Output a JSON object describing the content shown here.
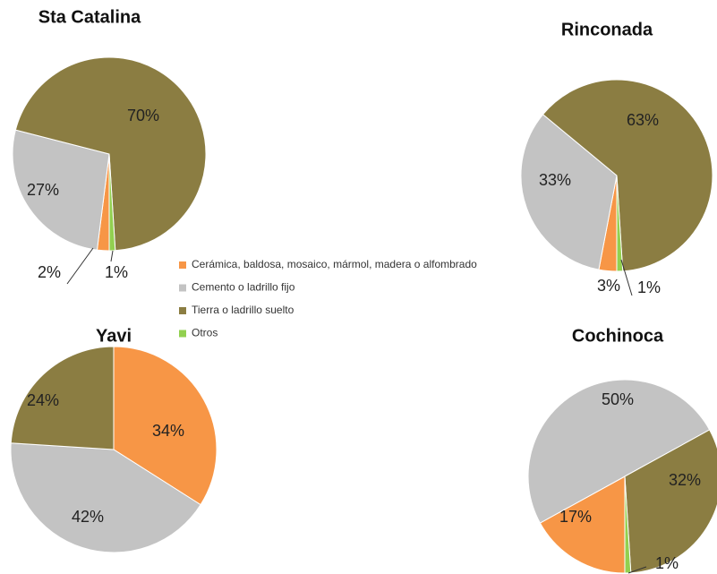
{
  "chart_data": [
    {
      "type": "pie",
      "title": "Sta Catalina",
      "start_angle": 180,
      "categories": [
        "Cerámica, baldosa, mosaico, mármol, madera o alfombrado",
        "Cemento o ladrillo fijo",
        "Tierra o ladrillo suelto",
        "Otros"
      ],
      "values": [
        2,
        27,
        70,
        1
      ],
      "value_labels": [
        "2%",
        "27%",
        "70%",
        "1%"
      ],
      "colors": [
        "#f79646",
        "#c3c3c3",
        "#8b7d42",
        "#92d050"
      ]
    },
    {
      "type": "pie",
      "title": "Rinconada",
      "start_angle": 180,
      "categories": [
        "Cerámica, baldosa, mosaico, mármol, madera o alfombrado",
        "Cemento o ladrillo fijo",
        "Tierra o ladrillo suelto",
        "Otros"
      ],
      "values": [
        3,
        33,
        63,
        1
      ],
      "value_labels": [
        "3%",
        "33%",
        "63%",
        "1%"
      ],
      "colors": [
        "#f79646",
        "#c3c3c3",
        "#8b7d42",
        "#92d050"
      ]
    },
    {
      "type": "pie",
      "title": "Yavi",
      "start_angle": 0,
      "categories": [
        "Cerámica, baldosa, mosaico, mármol, madera o alfombrado",
        "Cemento o ladrillo fijo",
        "Tierra o ladrillo suelto"
      ],
      "values": [
        34,
        42,
        24
      ],
      "value_labels": [
        "34%",
        "42%",
        "24%"
      ],
      "colors": [
        "#f79646",
        "#c3c3c3",
        "#8b7d42"
      ]
    },
    {
      "type": "pie",
      "title": "Cochinoca",
      "start_angle": 180,
      "categories": [
        "Cerámica, baldosa, mosaico, mármol, madera o alfombrado",
        "Cemento o ladrillo fijo",
        "Tierra o ladrillo suelto",
        "Otros"
      ],
      "values": [
        17,
        50,
        32,
        1
      ],
      "value_labels": [
        "17%",
        "50%",
        "32%",
        "1%"
      ],
      "colors": [
        "#f79646",
        "#c3c3c3",
        "#8b7d42",
        "#92d050"
      ]
    }
  ]
}
